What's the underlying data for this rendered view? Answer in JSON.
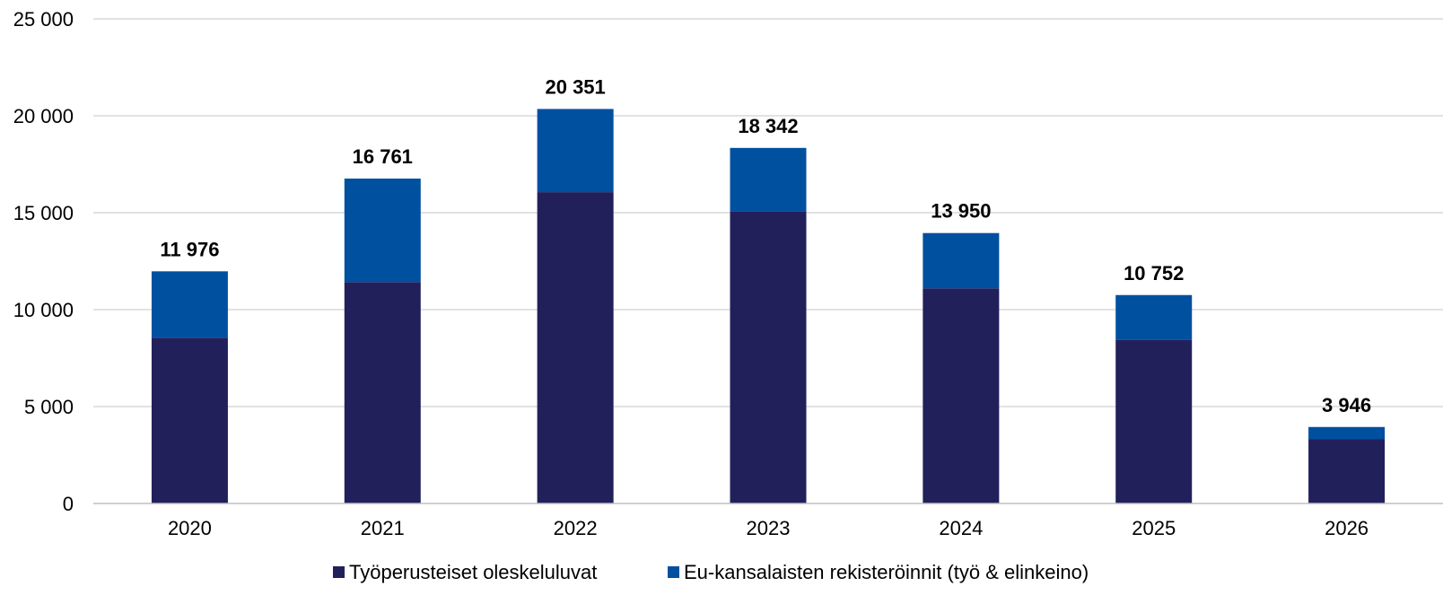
{
  "colors": {
    "series_dark": "#22205a",
    "series_blue": "#0050a0",
    "grid": "#d9d9d9",
    "axis": "#bfbfbf",
    "text": "#000000"
  },
  "chart_data": {
    "type": "bar",
    "stacked": true,
    "title": "",
    "xlabel": "",
    "ylabel": "",
    "categories": [
      "2020",
      "2021",
      "2022",
      "2023",
      "2024",
      "2025",
      "2026"
    ],
    "series": [
      {
        "name": "Työperusteiset oleskeluluvat",
        "color": "#22205a",
        "values": [
          8550,
          11420,
          16060,
          15080,
          11100,
          8430,
          3330
        ]
      },
      {
        "name": "Eu-kansalaisten rekisteröinnit (työ & elinkeino)",
        "color": "#0050a0",
        "values": [
          3426,
          5341,
          4291,
          3262,
          2850,
          2322,
          616
        ]
      }
    ],
    "totals": [
      11976,
      16761,
      20351,
      18342,
      13950,
      10752,
      3946
    ],
    "total_labels": [
      "11 976",
      "16 761",
      "20 351",
      "18 342",
      "13 950",
      "10 752",
      "3 946"
    ],
    "ylim": [
      0,
      25000
    ],
    "yticks": [
      0,
      5000,
      10000,
      15000,
      20000,
      25000
    ],
    "ytick_labels": [
      "0",
      "5 000",
      "10 000",
      "15 000",
      "20 000",
      "25 000"
    ],
    "grid": true,
    "legend_position": "bottom"
  }
}
